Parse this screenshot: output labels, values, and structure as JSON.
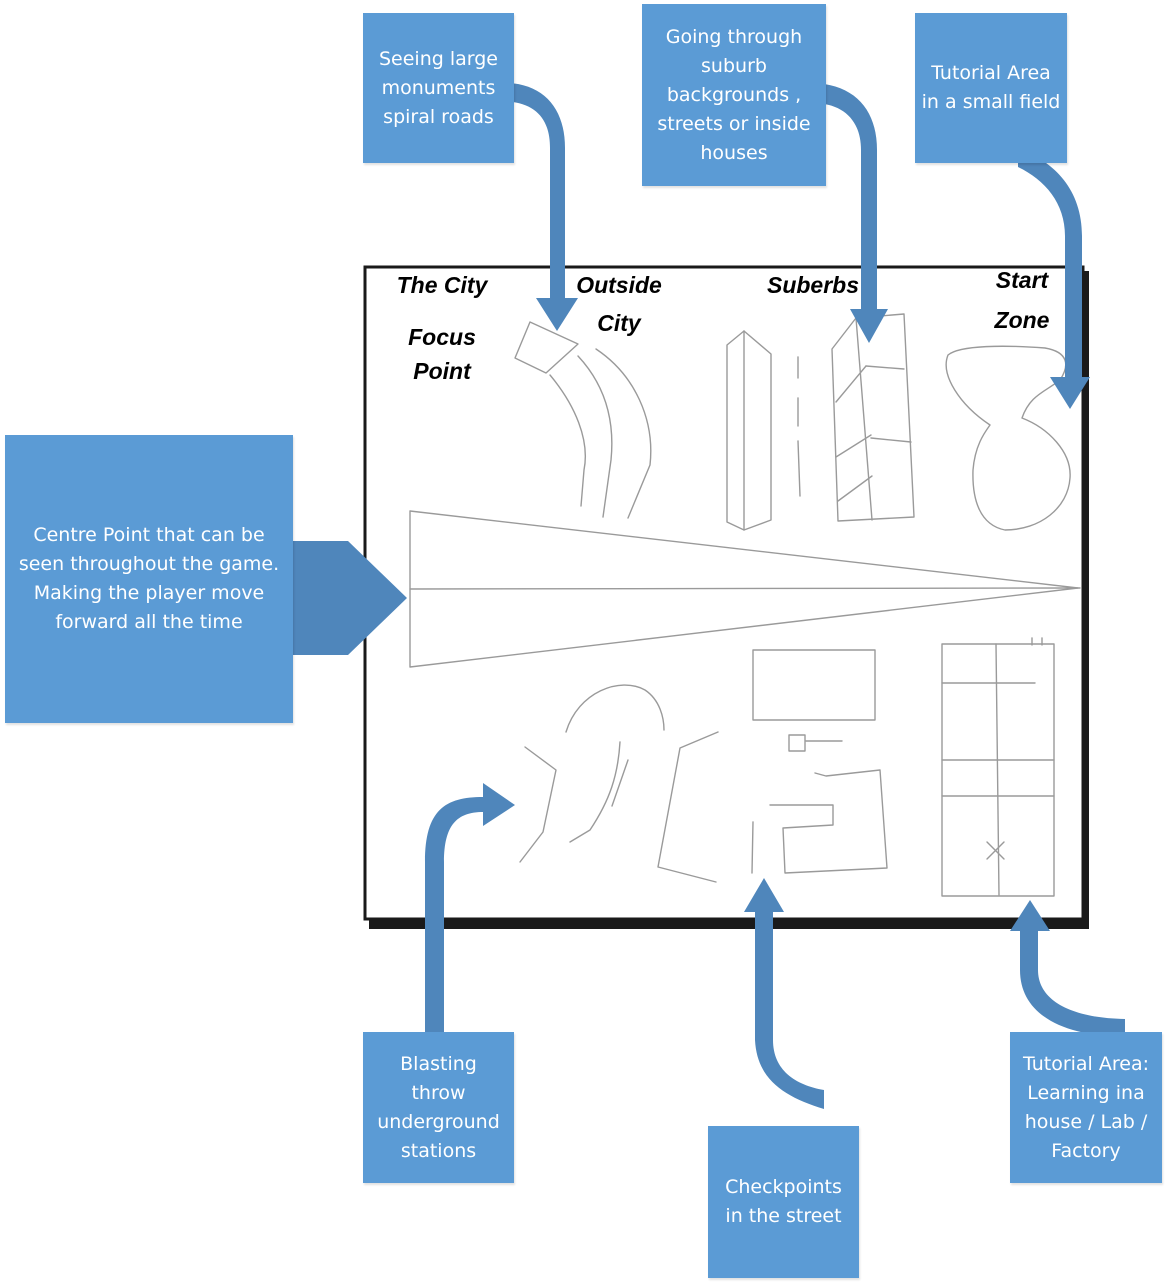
{
  "colors": {
    "callout_fill": "#5b9bd5",
    "arrow_fill": "#4f86bb",
    "callout_text": "#ffffff",
    "frame": "#1a1a1a",
    "sketch": "#9a9a9a"
  },
  "zones": {
    "city": "The City",
    "focus_point": [
      "Focus",
      "Point"
    ],
    "outside_city": [
      "Outside",
      "City"
    ],
    "suburbs": "Suberbs",
    "start_zone": [
      "Start",
      "Zone"
    ]
  },
  "callouts": {
    "monuments": [
      "Seeing large",
      "monuments",
      "spiral roads"
    ],
    "suburb": [
      "Going through",
      "suburb",
      "backgrounds ,",
      "streets or inside",
      "houses"
    ],
    "tutorial_field": [
      "Tutorial Area",
      "in a small field"
    ],
    "centre_point": [
      "Centre Point that can be",
      "seen throughout the game.",
      "Making the player move",
      "forward all the time"
    ],
    "underground": [
      "Blasting",
      "throw",
      "underground",
      "stations"
    ],
    "checkpoints": [
      "Checkpoints",
      "in the street"
    ],
    "tutorial_house": [
      "Tutorial Area:",
      "Learning ina",
      "house / Lab /",
      "Factory"
    ]
  }
}
